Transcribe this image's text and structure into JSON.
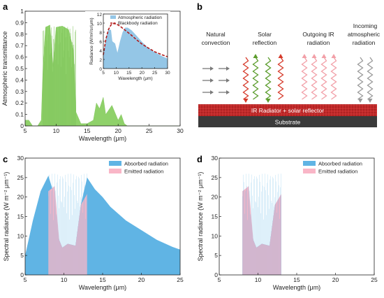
{
  "panels": {
    "a": "a",
    "b": "b",
    "c": "c",
    "d": "d"
  },
  "colors": {
    "green": "#8fd16a",
    "blue": "#60b4e4",
    "light_blue": "#94c6e6",
    "pink": "#f9b6c7",
    "red_dash": "#b31b1b",
    "radiator": "#c12a2a",
    "substrate": "#3a3a3a"
  },
  "diagram": {
    "natural_convection": "Natural convection",
    "solar_reflection": "Solar reflection",
    "outgoing_ir": "Outgoing IR radiation",
    "incoming_atm": "Incoming atmospheric radiation",
    "radiator_label": "IR Radiator + solar reflector",
    "substrate_label": "Substrate"
  },
  "chart_data": [
    {
      "id": "a",
      "type": "area",
      "xlabel": "Wavelength (μm)",
      "ylabel": "Atmospheric transmittance",
      "xlim": [
        5,
        30
      ],
      "ylim": [
        0,
        1.0
      ],
      "xticks": [
        5,
        10,
        15,
        20,
        25,
        30
      ],
      "yticks": [
        0,
        0.1,
        0.2,
        0.3,
        0.4,
        0.5,
        0.6,
        0.7,
        0.8,
        0.9,
        1.0
      ],
      "series": [
        {
          "x": [
            5,
            5.6,
            6.2,
            7,
            7.6,
            7.9,
            8.3,
            9,
            9.5,
            9.6,
            10,
            11,
            12,
            12.8,
            13.2,
            14,
            15,
            16,
            16.5,
            17,
            17.6,
            18,
            19,
            20,
            20.5,
            21,
            21.5,
            22,
            25,
            30
          ],
          "values": [
            0.05,
            0.05,
            0.0,
            0.0,
            0.05,
            0.55,
            0.86,
            0.88,
            0.52,
            0.6,
            0.86,
            0.87,
            0.84,
            0.66,
            0.12,
            0.02,
            0.02,
            0.05,
            0.2,
            0.15,
            0.25,
            0.1,
            0.18,
            0.05,
            0.1,
            0.02,
            0.0,
            0.0,
            0.0,
            0.0
          ]
        }
      ]
    },
    {
      "id": "a-inset",
      "type": "area",
      "xlabel": "Wavelength (μm)",
      "ylabel": "Radiance (W/m²/sr/μm)",
      "xlim": [
        5,
        30
      ],
      "ylim": [
        0,
        12
      ],
      "xticks": [
        5,
        10,
        15,
        20,
        25,
        30
      ],
      "yticks": [
        0,
        2,
        4,
        6,
        8,
        10,
        12
      ],
      "series": [
        {
          "name": "Atmospheric radiation",
          "x": [
            5,
            6,
            7,
            8,
            8.5,
            9.6,
            10.5,
            11.5,
            12.5,
            13.5,
            14.5,
            16,
            18,
            20,
            22,
            25,
            28,
            30
          ],
          "values": [
            3.0,
            6.5,
            8.6,
            8.5,
            6.0,
            5.5,
            3.5,
            6.0,
            8.0,
            9.0,
            9.0,
            8.4,
            7.2,
            5.9,
            4.8,
            3.6,
            2.7,
            2.2
          ]
        },
        {
          "name": "Blackbody radiation",
          "x": [
            5,
            6,
            7,
            8,
            9,
            10,
            11,
            12,
            14,
            16,
            18,
            20,
            22,
            25,
            28,
            30
          ],
          "values": [
            3.0,
            6.5,
            8.6,
            9.6,
            9.9,
            9.8,
            9.5,
            9.1,
            8.2,
            7.3,
            6.3,
            5.4,
            4.7,
            3.7,
            3.0,
            2.6
          ]
        }
      ]
    },
    {
      "id": "c",
      "type": "area",
      "xlabel": "Wavelength (μm)",
      "ylabel": "Spectral radiance (W m⁻² μm⁻¹)",
      "xlim": [
        5,
        25
      ],
      "ylim": [
        0,
        30
      ],
      "xticks": [
        5,
        10,
        15,
        20,
        25
      ],
      "yticks": [
        0,
        5,
        10,
        15,
        20,
        25,
        30
      ],
      "series": [
        {
          "name": "Absorbed radiation",
          "x": [
            5,
            6,
            7,
            8,
            8.6,
            9.4,
            9.8,
            10.5,
            11.5,
            12.2,
            13,
            14,
            15,
            16,
            18,
            20,
            22,
            24,
            25
          ],
          "values": [
            5.0,
            14.0,
            21.5,
            25.5,
            21.5,
            9.0,
            7.0,
            8.0,
            7.5,
            18.0,
            25.0,
            22.0,
            20.0,
            17.5,
            14.0,
            11.5,
            9.0,
            7.2,
            6.5
          ]
        },
        {
          "name": "Emitted radiation",
          "x": [
            8,
            8.8,
            9.4,
            9.8,
            10.5,
            11.5,
            12.2,
            13
          ],
          "values": [
            21.5,
            22.8,
            9.0,
            7.0,
            8.0,
            7.5,
            18.0,
            20.8
          ]
        }
      ]
    },
    {
      "id": "d",
      "type": "area",
      "xlabel": "Wavelength (μm)",
      "ylabel": "Spectral radiance (W m⁻² μm⁻¹)",
      "xlim": [
        5,
        25
      ],
      "ylim": [
        0,
        30
      ],
      "xticks": [
        5,
        10,
        15,
        20,
        25
      ],
      "yticks": [
        0,
        5,
        10,
        15,
        20,
        25,
        30
      ],
      "series": [
        {
          "name": "Absorbed radiation",
          "x": [
            8,
            8.6,
            9.4,
            9.8,
            10.5,
            11.5,
            12.2,
            13
          ],
          "values": [
            21.5,
            22.0,
            9.0,
            7.0,
            8.0,
            7.5,
            18.0,
            20.5
          ]
        },
        {
          "name": "Emitted radiation",
          "x": [
            8,
            8.8,
            9.4,
            9.8,
            10.5,
            11.5,
            12.2,
            13
          ],
          "values": [
            21.5,
            22.8,
            9.0,
            7.0,
            8.0,
            7.5,
            18.0,
            20.8
          ]
        }
      ]
    }
  ]
}
